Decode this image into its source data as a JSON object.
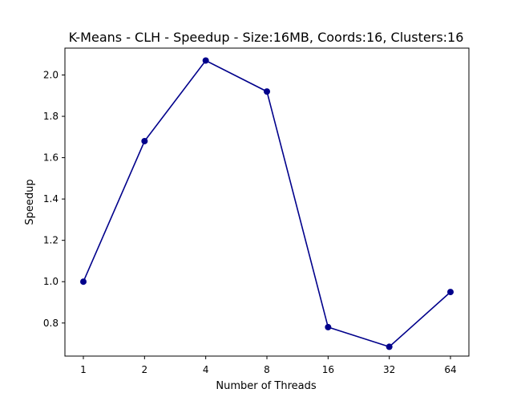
{
  "chart_data": {
    "type": "line",
    "title": "K-Means - CLH - Speedup - Size:16MB, Coords:16, Clusters:16",
    "xlabel": "Number of Threads",
    "ylabel": "Speedup",
    "categories": [
      "1",
      "2",
      "4",
      "8",
      "16",
      "32",
      "64"
    ],
    "series": [
      {
        "values": [
          1.0,
          1.68,
          2.07,
          1.92,
          0.78,
          0.685,
          0.95
        ]
      }
    ],
    "y_ticks": [
      0.8,
      1.0,
      1.2,
      1.4,
      1.6,
      1.8,
      2.0
    ],
    "y_tick_labels": [
      "0.8",
      "1.0",
      "1.2",
      "1.4",
      "1.6",
      "1.8",
      "2.0"
    ],
    "ylim": [
      0.64,
      2.13
    ],
    "grid": false,
    "legend": "none",
    "colors": {
      "line": "#00008b",
      "marker": "#00008b"
    }
  }
}
